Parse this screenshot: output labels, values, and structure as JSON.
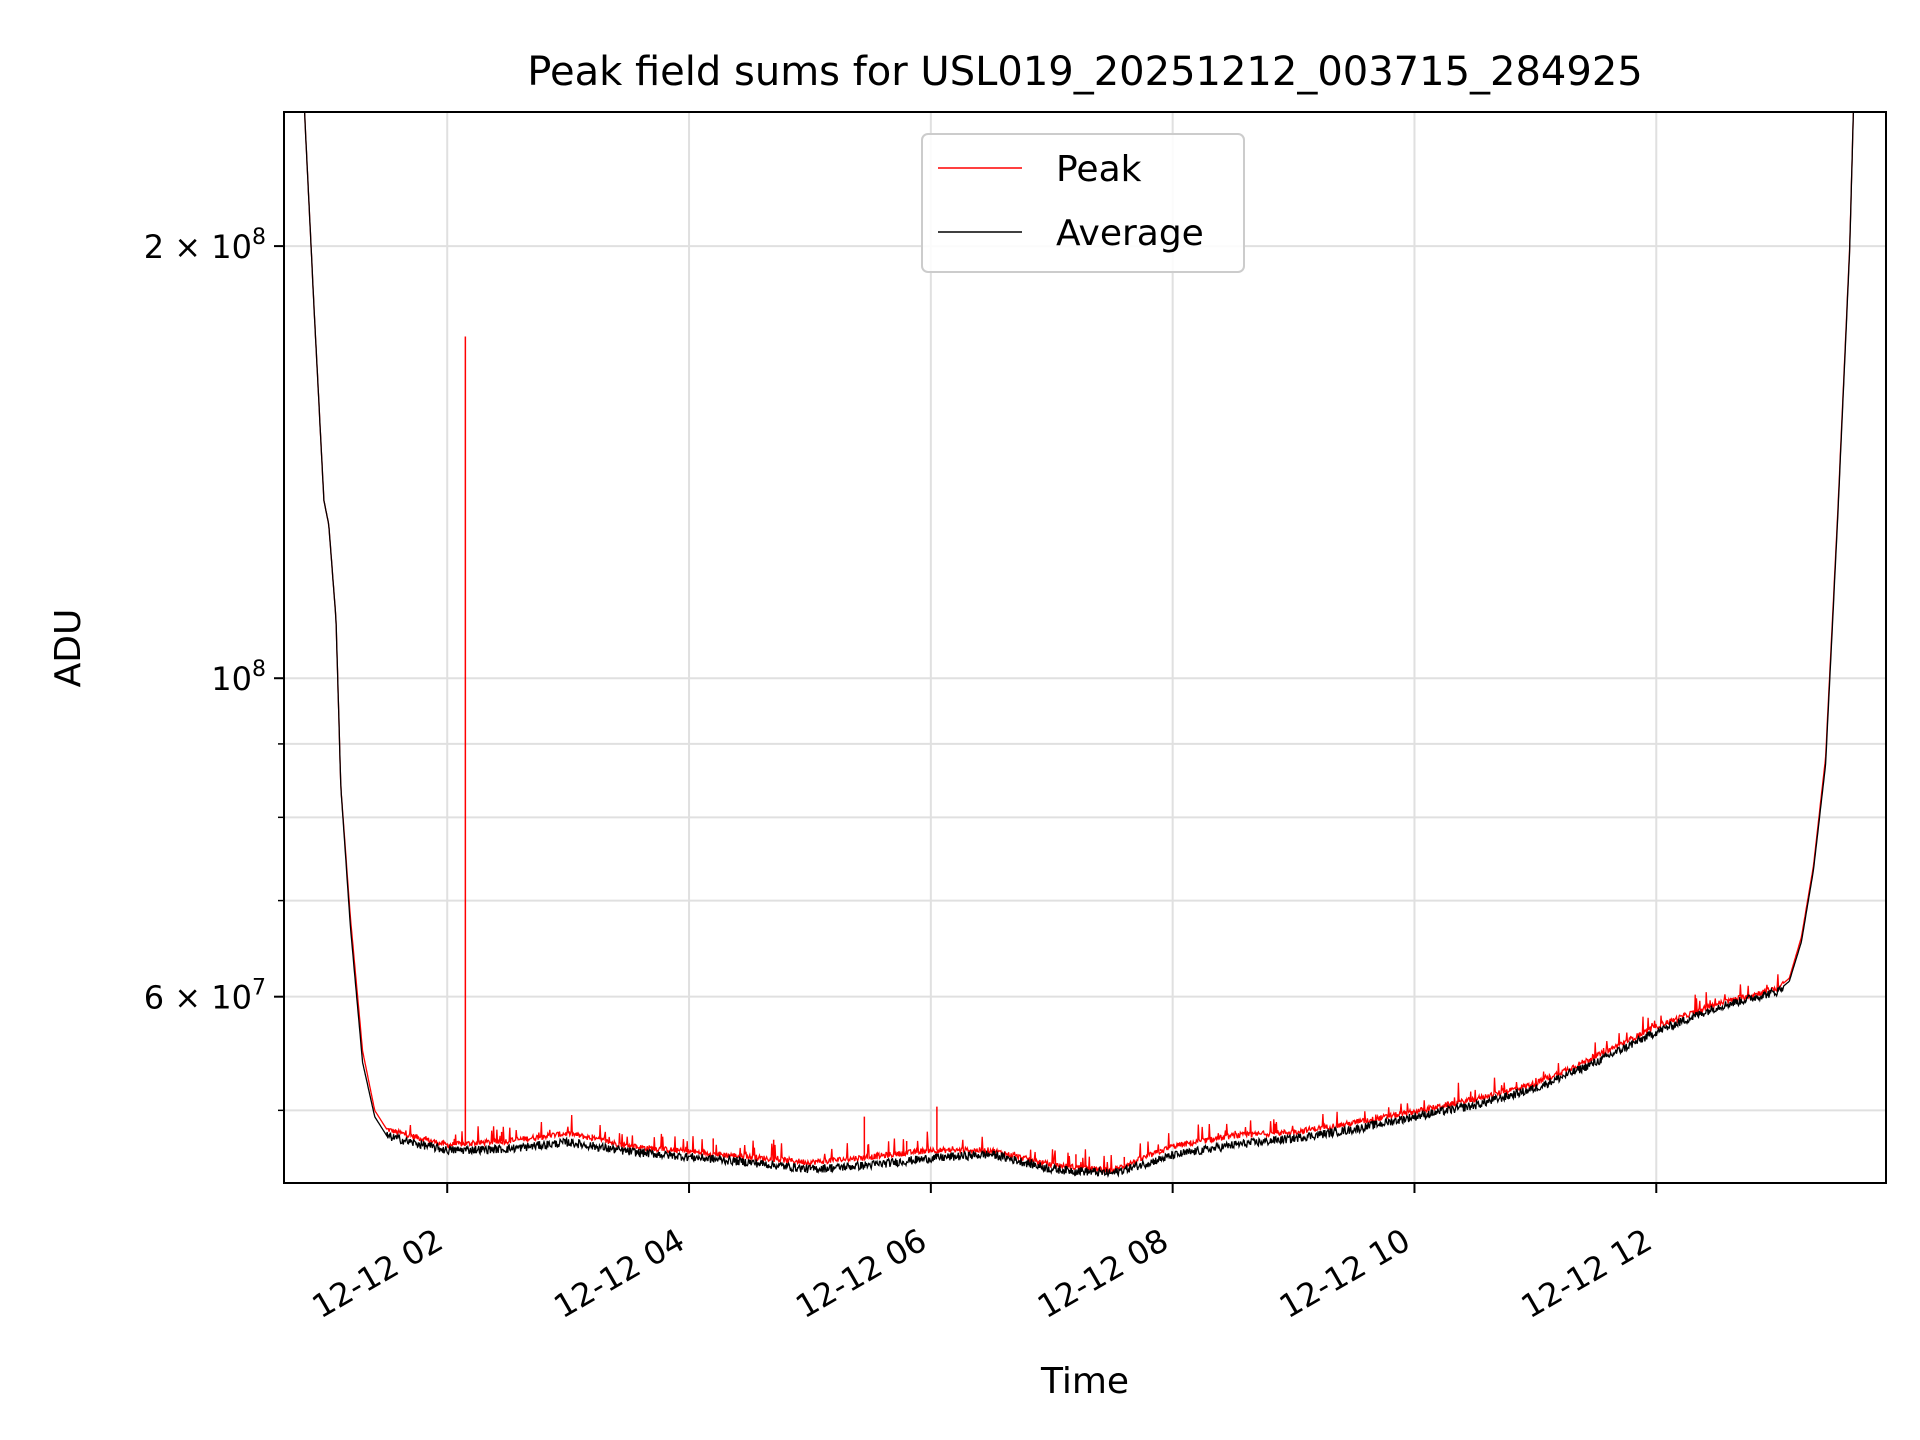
{
  "chart_data": {
    "type": "line",
    "title": "Peak field sums for USL019_20251212_003715_284925",
    "xlabel": "Time",
    "ylabel": "ADU",
    "yscale": "log",
    "xlim_hours": [
      0.65,
      13.9
    ],
    "ylim": [
      44500000,
      248000000
    ],
    "grid": true,
    "legend_position": "upper-center",
    "x_ticks": [
      {
        "hour": 2,
        "label": "12-12 02"
      },
      {
        "hour": 4,
        "label": "12-12 04"
      },
      {
        "hour": 6,
        "label": "12-12 06"
      },
      {
        "hour": 8,
        "label": "12-12 08"
      },
      {
        "hour": 10,
        "label": "12-12 10"
      },
      {
        "hour": 12,
        "label": "12-12 12"
      }
    ],
    "y_major_ticks": [
      {
        "value": 100000000,
        "base": "10",
        "exp": "8",
        "coef": ""
      },
      {
        "value": 200000000,
        "base": "10",
        "exp": "8",
        "coef": "2 × "
      },
      {
        "value": 60000000,
        "base": "10",
        "exp": "7",
        "coef": "6 × "
      }
    ],
    "y_minor_gridlines": [
      50000000,
      70000000,
      80000000,
      90000000
    ],
    "series": [
      {
        "name": "Peak",
        "color": "#ff0000",
        "points": [
          [
            0.82,
            248000000
          ],
          [
            0.9,
            180000000
          ],
          [
            0.98,
            133000000
          ],
          [
            1.02,
            128000000
          ],
          [
            1.08,
            110000000
          ],
          [
            1.12,
            84000000
          ],
          [
            1.2,
            68000000
          ],
          [
            1.3,
            55000000
          ],
          [
            1.4,
            50000000
          ],
          [
            1.5,
            48500000
          ],
          [
            1.7,
            48000000
          ],
          [
            2.0,
            47300000
          ],
          [
            2.5,
            47600000
          ],
          [
            3.0,
            48200000
          ],
          [
            3.5,
            47200000
          ],
          [
            4.0,
            46800000
          ],
          [
            4.5,
            46400000
          ],
          [
            5.0,
            46000000
          ],
          [
            5.5,
            46400000
          ],
          [
            6.0,
            46900000
          ],
          [
            6.5,
            46900000
          ],
          [
            7.0,
            45800000
          ],
          [
            7.5,
            45400000
          ],
          [
            8.0,
            47200000
          ],
          [
            8.5,
            48000000
          ],
          [
            9.0,
            48300000
          ],
          [
            9.5,
            49000000
          ],
          [
            10.0,
            49900000
          ],
          [
            10.5,
            50900000
          ],
          [
            11.0,
            52200000
          ],
          [
            11.5,
            54500000
          ],
          [
            12.0,
            57200000
          ],
          [
            12.5,
            59300000
          ],
          [
            13.0,
            60800000
          ],
          [
            13.1,
            61800000
          ],
          [
            13.2,
            66000000
          ],
          [
            13.3,
            74000000
          ],
          [
            13.4,
            88000000
          ],
          [
            13.5,
            130000000
          ],
          [
            13.6,
            200000000
          ],
          [
            13.63,
            248000000
          ]
        ]
      },
      {
        "name": "Average",
        "color": "#000000",
        "points": [
          [
            0.82,
            248000000
          ],
          [
            0.9,
            180000000
          ],
          [
            0.98,
            133000000
          ],
          [
            1.02,
            128000000
          ],
          [
            1.08,
            110000000
          ],
          [
            1.12,
            84000000
          ],
          [
            1.2,
            67000000
          ],
          [
            1.3,
            54000000
          ],
          [
            1.4,
            49500000
          ],
          [
            1.5,
            48000000
          ],
          [
            1.7,
            47500000
          ],
          [
            2.0,
            46900000
          ],
          [
            2.5,
            47000000
          ],
          [
            3.0,
            47500000
          ],
          [
            3.5,
            46800000
          ],
          [
            4.0,
            46400000
          ],
          [
            4.5,
            46000000
          ],
          [
            5.0,
            45500000
          ],
          [
            5.5,
            45800000
          ],
          [
            6.0,
            46300000
          ],
          [
            6.5,
            46600000
          ],
          [
            7.0,
            45500000
          ],
          [
            7.5,
            45200000
          ],
          [
            8.0,
            46500000
          ],
          [
            8.5,
            47300000
          ],
          [
            9.0,
            47800000
          ],
          [
            9.5,
            48500000
          ],
          [
            10.0,
            49500000
          ],
          [
            10.5,
            50400000
          ],
          [
            11.0,
            51800000
          ],
          [
            11.5,
            54000000
          ],
          [
            12.0,
            56700000
          ],
          [
            12.5,
            59000000
          ],
          [
            13.0,
            60500000
          ],
          [
            13.1,
            61500000
          ],
          [
            13.2,
            65500000
          ],
          [
            13.3,
            73500000
          ],
          [
            13.4,
            87000000
          ],
          [
            13.5,
            129000000
          ],
          [
            13.6,
            199000000
          ],
          [
            13.63,
            248000000
          ]
        ]
      }
    ],
    "peak_spikes": [
      {
        "hour": 2.15,
        "value": 173000000
      },
      {
        "hour": 5.45,
        "value": 49500000
      },
      {
        "hour": 6.05,
        "value": 50300000
      },
      {
        "hour": 2.45,
        "value": 48300000
      },
      {
        "hour": 3.2,
        "value": 48100000
      },
      {
        "hour": 4.2,
        "value": 47800000
      },
      {
        "hour": 4.7,
        "value": 47700000
      },
      {
        "hour": 5.8,
        "value": 47600000
      },
      {
        "hour": 7.2,
        "value": 46600000
      },
      {
        "hour": 7.6,
        "value": 46400000
      },
      {
        "hour": 7.9,
        "value": 47000000
      }
    ]
  }
}
